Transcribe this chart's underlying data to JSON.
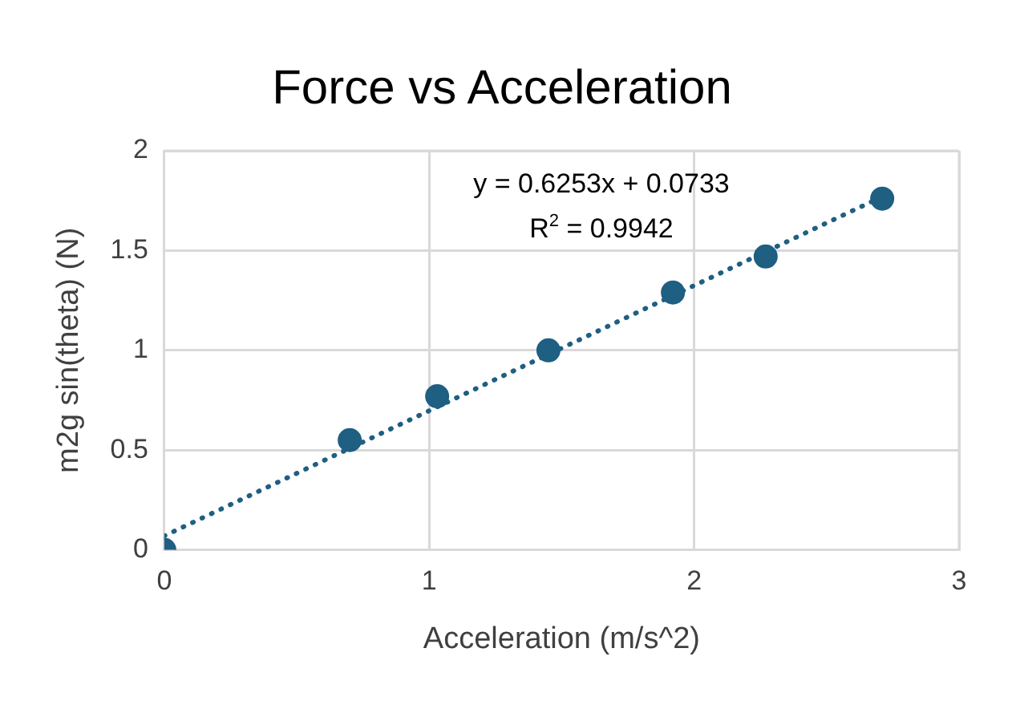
{
  "chart_data": {
    "type": "scatter",
    "title": "Force vs Acceleration",
    "xlabel": "Acceleration (m/s^2)",
    "ylabel": "m2g sin(theta) (N)",
    "series": [
      {
        "color": "#1f5f82",
        "x": [
          0,
          0.7,
          1.03,
          1.45,
          1.92,
          2.27,
          2.71
        ],
        "values": [
          0,
          0.55,
          0.77,
          1.0,
          1.29,
          1.47,
          1.76
        ],
        "marker": "circle"
      },
      {
        "type": "line",
        "color": "#1f5f82",
        "x": [
          0,
          2.71
        ],
        "values": [
          0.07,
          1.77
        ],
        "marker": "none",
        "line_style": "dotted"
      }
    ],
    "xlim": [
      0,
      3
    ],
    "xticks": [
      0,
      1,
      2,
      3
    ],
    "ylim": [
      0,
      2
    ],
    "yticks": [
      0,
      0.5,
      1,
      1.5,
      2
    ],
    "grid": true,
    "legend": false,
    "annotations": [
      "y = 0.6253x + 0.0733",
      "R$^{2}$ = 0.9942"
    ]
  }
}
